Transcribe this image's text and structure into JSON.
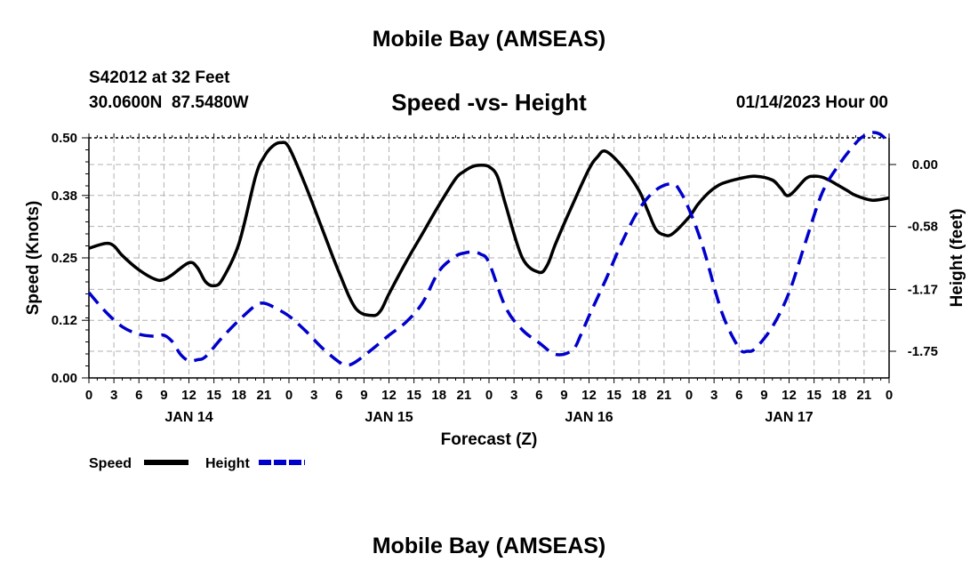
{
  "header": {
    "title": "Mobile Bay (AMSEAS)",
    "station": "S42012 at 32 Feet",
    "coordinates": "30.0600N  87.5480W",
    "forecast_time": "01/14/2023 Hour 00",
    "footer_title": "Mobile Bay (AMSEAS)"
  },
  "chart_data": {
    "type": "line",
    "title": "Speed -vs- Height",
    "xlabel": "Forecast (Z)",
    "ylabel": "Speed (Knots)",
    "y2label": "Height (feet)",
    "xlim": [
      0,
      96
    ],
    "ylim": [
      0,
      0.5
    ],
    "y2lim": [
      -2.0,
      0.25
    ],
    "x_tick_step_hours": 3,
    "x_tick_labels": [
      "0",
      "3",
      "6",
      "9",
      "12",
      "15",
      "18",
      "21",
      "0",
      "3",
      "6",
      "9",
      "12",
      "15",
      "18",
      "21",
      "0",
      "3",
      "6",
      "9",
      "12",
      "15",
      "18",
      "21",
      "0",
      "3",
      "6",
      "9",
      "12",
      "15",
      "18",
      "21",
      "0"
    ],
    "day_labels": [
      {
        "hour": 12,
        "label": "JAN 14"
      },
      {
        "hour": 36,
        "label": "JAN 15"
      },
      {
        "hour": 60,
        "label": "JAN 16"
      },
      {
        "hour": 84,
        "label": "JAN 17"
      }
    ],
    "y_ticks": [
      0.0,
      0.12,
      0.25,
      0.38,
      0.5
    ],
    "y_tick_labels": [
      "0.00",
      "0.12",
      "0.25",
      "0.38",
      "0.50"
    ],
    "y2_ticks": [
      0.0,
      -0.58,
      -1.17,
      -1.75
    ],
    "y2_tick_labels": [
      "0.00",
      "-0.58",
      "-1.17",
      "-1.75"
    ],
    "grid": true,
    "legend_position": "bottom-left",
    "series": [
      {
        "name": "Speed",
        "axis": "left",
        "color": "#000000",
        "dash": "solid",
        "x": [
          0,
          2,
          3,
          4,
          6,
          8,
          9,
          10,
          12,
          13,
          14,
          15,
          16,
          18,
          20,
          21,
          22,
          23,
          24,
          26,
          28,
          30,
          32,
          34,
          35,
          36,
          38,
          40,
          42,
          44,
          45,
          46,
          47,
          48,
          49,
          50,
          52,
          54,
          55,
          56,
          58,
          60,
          61,
          62,
          64,
          66,
          67,
          68,
          69,
          70,
          72,
          73,
          74,
          75,
          76,
          78,
          80,
          82,
          83,
          84,
          86,
          87,
          88,
          89,
          90,
          91,
          92,
          94,
          96
        ],
        "values": [
          0.27,
          0.28,
          0.275,
          0.255,
          0.225,
          0.205,
          0.205,
          0.215,
          0.24,
          0.23,
          0.2,
          0.192,
          0.205,
          0.28,
          0.42,
          0.46,
          0.482,
          0.49,
          0.48,
          0.4,
          0.31,
          0.22,
          0.145,
          0.13,
          0.14,
          0.175,
          0.24,
          0.3,
          0.36,
          0.415,
          0.43,
          0.44,
          0.443,
          0.44,
          0.42,
          0.36,
          0.25,
          0.22,
          0.235,
          0.28,
          0.36,
          0.435,
          0.46,
          0.472,
          0.44,
          0.39,
          0.35,
          0.31,
          0.298,
          0.3,
          0.335,
          0.36,
          0.38,
          0.395,
          0.405,
          0.415,
          0.42,
          0.412,
          0.395,
          0.38,
          0.415,
          0.42,
          0.418,
          0.41,
          0.4,
          0.39,
          0.38,
          0.37,
          0.375
        ]
      },
      {
        "name": "Height",
        "axis": "right",
        "color": "#0000cc",
        "dash": "dashed",
        "x": [
          0,
          2,
          4,
          6,
          8,
          9,
          10,
          11,
          12,
          13,
          14,
          16,
          18,
          20,
          21,
          22,
          24,
          26,
          28,
          30,
          31,
          32,
          34,
          36,
          38,
          40,
          42,
          44,
          45,
          46,
          47,
          48,
          50,
          52,
          54,
          56,
          58,
          59,
          60,
          62,
          64,
          66,
          68,
          70,
          71,
          72,
          73,
          74,
          76,
          78,
          79,
          80,
          82,
          84,
          86,
          88,
          90,
          92,
          93,
          94,
          95,
          96
        ],
        "values": [
          -1.2,
          -1.38,
          -1.52,
          -1.59,
          -1.61,
          -1.6,
          -1.66,
          -1.78,
          -1.84,
          -1.83,
          -1.8,
          -1.62,
          -1.46,
          -1.32,
          -1.3,
          -1.33,
          -1.42,
          -1.56,
          -1.72,
          -1.85,
          -1.88,
          -1.85,
          -1.73,
          -1.6,
          -1.48,
          -1.3,
          -1.0,
          -0.86,
          -0.83,
          -0.82,
          -0.84,
          -0.92,
          -1.34,
          -1.55,
          -1.67,
          -1.78,
          -1.74,
          -1.6,
          -1.42,
          -1.08,
          -0.72,
          -0.42,
          -0.24,
          -0.18,
          -0.26,
          -0.42,
          -0.62,
          -0.86,
          -1.4,
          -1.72,
          -1.75,
          -1.72,
          -1.52,
          -1.2,
          -0.72,
          -0.26,
          0.0,
          0.2,
          0.27,
          0.3,
          0.28,
          0.2
        ]
      }
    ]
  }
}
